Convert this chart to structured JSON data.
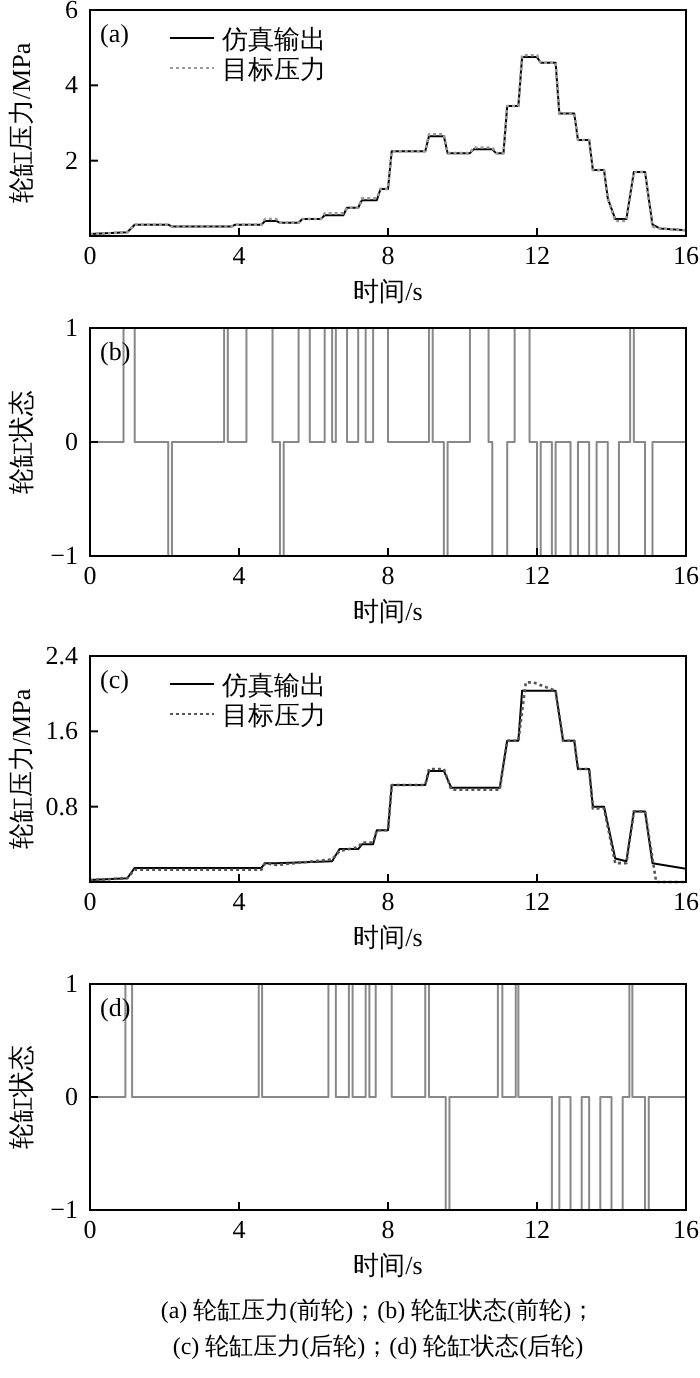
{
  "chart_data": [
    {
      "type": "line",
      "xlabel": "时间/s",
      "ylabel": "轮缸压力/MPa",
      "xlim": [
        0,
        16
      ],
      "xticks": [
        0,
        4,
        8,
        12,
        16
      ],
      "ylim": [
        0,
        6
      ],
      "yticks": [
        2,
        4,
        6
      ],
      "legend": "top left",
      "annotations": [
        "(a)"
      ],
      "series": [
        {
          "name": "仿真输出",
          "color": "#000000",
          "line_style": "solid",
          "x": [
            0,
            1,
            1.2,
            2.1,
            2.2,
            3.8,
            3.9,
            4.6,
            4.7,
            5,
            5.1,
            5.6,
            5.7,
            6.2,
            6.3,
            6.8,
            6.9,
            7.2,
            7.3,
            7.7,
            7.8,
            8,
            8.1,
            9,
            9.1,
            9.5,
            9.6,
            10.2,
            10.3,
            10.8,
            10.9,
            11.1,
            11.2,
            11.5,
            11.6,
            12,
            12.1,
            12.5,
            12.6,
            13,
            13.1,
            13.4,
            13.5,
            13.8,
            13.9,
            14.1,
            14.4,
            14.6,
            14.9,
            15.1,
            15.3,
            16
          ],
          "values": [
            0.05,
            0.1,
            0.3,
            0.3,
            0.25,
            0.25,
            0.3,
            0.3,
            0.4,
            0.4,
            0.35,
            0.35,
            0.45,
            0.45,
            0.55,
            0.55,
            0.75,
            0.75,
            0.95,
            0.95,
            1.25,
            1.25,
            2.25,
            2.25,
            2.65,
            2.65,
            2.2,
            2.2,
            2.3,
            2.3,
            2.2,
            2.2,
            3.45,
            3.45,
            4.75,
            4.75,
            4.6,
            4.6,
            3.25,
            3.25,
            2.55,
            2.55,
            1.75,
            1.75,
            1,
            0.45,
            0.45,
            1.7,
            1.7,
            0.3,
            0.2,
            0.15
          ]
        },
        {
          "name": "目标压力",
          "color": "#999999",
          "line_style": "dotted",
          "x": [
            0,
            1,
            1.2,
            2.1,
            2.2,
            3.8,
            3.9,
            4.6,
            4.7,
            5,
            5.1,
            5.6,
            5.7,
            6.2,
            6.3,
            6.8,
            6.9,
            7.2,
            7.3,
            7.7,
            7.8,
            8,
            8.1,
            9,
            9.1,
            9.5,
            9.6,
            10.2,
            10.3,
            10.8,
            10.9,
            11.1,
            11.2,
            11.5,
            11.6,
            12,
            12.1,
            12.5,
            12.6,
            13,
            13.1,
            13.4,
            13.5,
            13.8,
            13.9,
            14.1,
            14.4,
            14.6,
            14.9,
            15.1,
            15.3,
            16
          ],
          "values": [
            0.05,
            0.1,
            0.3,
            0.3,
            0.25,
            0.25,
            0.3,
            0.3,
            0.45,
            0.45,
            0.35,
            0.35,
            0.45,
            0.45,
            0.6,
            0.6,
            0.75,
            0.75,
            1,
            1,
            1.25,
            1.25,
            2.25,
            2.25,
            2.7,
            2.7,
            2.2,
            2.2,
            2.35,
            2.35,
            2.2,
            2.2,
            3.45,
            3.45,
            4.8,
            4.8,
            4.6,
            4.6,
            3.25,
            3.25,
            2.55,
            2.55,
            1.75,
            1.75,
            1,
            0.4,
            0.4,
            1.7,
            1.7,
            0.25,
            0.2,
            0.15
          ]
        }
      ]
    },
    {
      "type": "step",
      "xlabel": "时间/s",
      "ylabel": "轮缸状态",
      "xlim": [
        0,
        16
      ],
      "xticks": [
        0,
        4,
        8,
        12,
        16
      ],
      "ylim": [
        -1,
        1
      ],
      "yticks": [
        -1,
        0,
        1
      ],
      "annotations": [
        "(b)"
      ],
      "series": [
        {
          "color": "#888888",
          "x": [
            0,
            0.9,
            1.2,
            2.1,
            2.2,
            3.6,
            3.7,
            4.2,
            4.9,
            5.1,
            5.2,
            5.6,
            5.9,
            6.3,
            6.5,
            6.6,
            6.9,
            7.2,
            7.4,
            7.6,
            8,
            9.1,
            9.2,
            9.5,
            9.6,
            10.2,
            10.7,
            10.8,
            11.2,
            11.4,
            11.8,
            12,
            12.1,
            12.4,
            12.5,
            12.9,
            13.1,
            13.4,
            13.6,
            13.9,
            14.2,
            14.5,
            14.6,
            14.9,
            15.1,
            15.2,
            16
          ],
          "values": [
            0,
            1,
            0,
            -1,
            0,
            1,
            0,
            1,
            0,
            -1,
            0,
            1,
            0,
            1,
            0,
            1,
            0,
            1,
            0,
            1,
            0,
            1,
            0,
            -1,
            0,
            1,
            0,
            -1,
            0,
            1,
            0,
            -1,
            0,
            -1,
            0,
            -1,
            0,
            -1,
            0,
            -1,
            0,
            1,
            0,
            -1,
            0,
            0,
            0
          ]
        }
      ]
    },
    {
      "type": "line",
      "xlabel": "时间/s",
      "ylabel": "轮缸压力/MPa",
      "xlim": [
        0,
        16
      ],
      "xticks": [
        0,
        4,
        8,
        12,
        16
      ],
      "ylim": [
        0,
        2.4
      ],
      "yticks": [
        0.8,
        1.6,
        2.4
      ],
      "legend": "top left",
      "annotations": [
        "(c)"
      ],
      "series": [
        {
          "name": "仿真输出",
          "color": "#000000",
          "line_style": "solid",
          "x": [
            0,
            1,
            1.2,
            4.6,
            4.7,
            5,
            6.5,
            6.7,
            7.2,
            7.3,
            7.6,
            7.7,
            8,
            8.1,
            9,
            9.1,
            9.5,
            9.7,
            11,
            11.2,
            11.5,
            11.6,
            12.5,
            12.7,
            13,
            13.1,
            13.4,
            13.5,
            13.8,
            14.1,
            14.4,
            14.6,
            14.9,
            15.1,
            16
          ],
          "values": [
            0.02,
            0.04,
            0.15,
            0.15,
            0.2,
            0.2,
            0.22,
            0.35,
            0.35,
            0.4,
            0.4,
            0.55,
            0.55,
            1.03,
            1.03,
            1.18,
            1.18,
            1,
            1,
            1.5,
            1.5,
            2.03,
            2.03,
            1.5,
            1.5,
            1.2,
            1.2,
            0.8,
            0.8,
            0.25,
            0.22,
            0.75,
            0.75,
            0.2,
            0.14
          ]
        },
        {
          "name": "目标压力",
          "color": "#555555",
          "line_style": "dotted",
          "x": [
            0,
            1,
            1.2,
            4.6,
            4.7,
            5,
            6.5,
            6.7,
            7.2,
            7.3,
            7.6,
            7.7,
            8,
            8.1,
            9,
            9.1,
            9.5,
            9.7,
            11,
            11.2,
            11.5,
            11.7,
            11.9,
            12.5,
            12.7,
            13,
            13.1,
            13.4,
            13.5,
            13.8,
            14.1,
            14.4,
            14.6,
            14.9,
            15.2,
            16
          ],
          "values": [
            0.02,
            0.04,
            0.13,
            0.13,
            0.2,
            0.18,
            0.24,
            0.33,
            0.37,
            0.42,
            0.42,
            0.55,
            0.55,
            1.03,
            1.03,
            1.2,
            1.2,
            0.98,
            0.98,
            1.5,
            1.5,
            2.12,
            2.12,
            2.03,
            1.5,
            1.5,
            1.2,
            1.2,
            0.78,
            0.78,
            0.2,
            0.2,
            0.75,
            0.75,
            0,
            0
          ]
        }
      ]
    },
    {
      "type": "step",
      "xlabel": "时间/s",
      "ylabel": "轮缸状态",
      "xlim": [
        0,
        16
      ],
      "xticks": [
        0,
        4,
        8,
        12,
        16
      ],
      "ylim": [
        -1,
        1
      ],
      "yticks": [
        -1,
        0,
        1
      ],
      "annotations": [
        "(d)",
        "(a) 轮缸压力(前轮)；(b) 轮缸状态(前轮)；",
        "(c) 轮缸压力(后轮)；(d) 轮缸状态(后轮)"
      ],
      "series": [
        {
          "color": "#888888",
          "x": [
            0,
            0.95,
            1.13,
            4.53,
            4.62,
            6.4,
            6.6,
            6.95,
            7.05,
            7.4,
            7.5,
            7.67,
            8.1,
            9,
            9.1,
            9.55,
            9.65,
            10.95,
            11.07,
            11.43,
            11.5,
            12.4,
            12.6,
            12.9,
            13.2,
            13.4,
            13.7,
            14,
            14.3,
            14.48,
            14.56,
            14.9,
            15,
            16
          ],
          "values": [
            0,
            1,
            0,
            1,
            0,
            1,
            0,
            1,
            0,
            1,
            0,
            1,
            0,
            1,
            0,
            -1,
            0,
            1,
            0,
            1,
            0,
            -1,
            0,
            -1,
            0,
            -1,
            0,
            -1,
            0,
            1,
            0,
            -1,
            0,
            0
          ]
        }
      ]
    }
  ]
}
